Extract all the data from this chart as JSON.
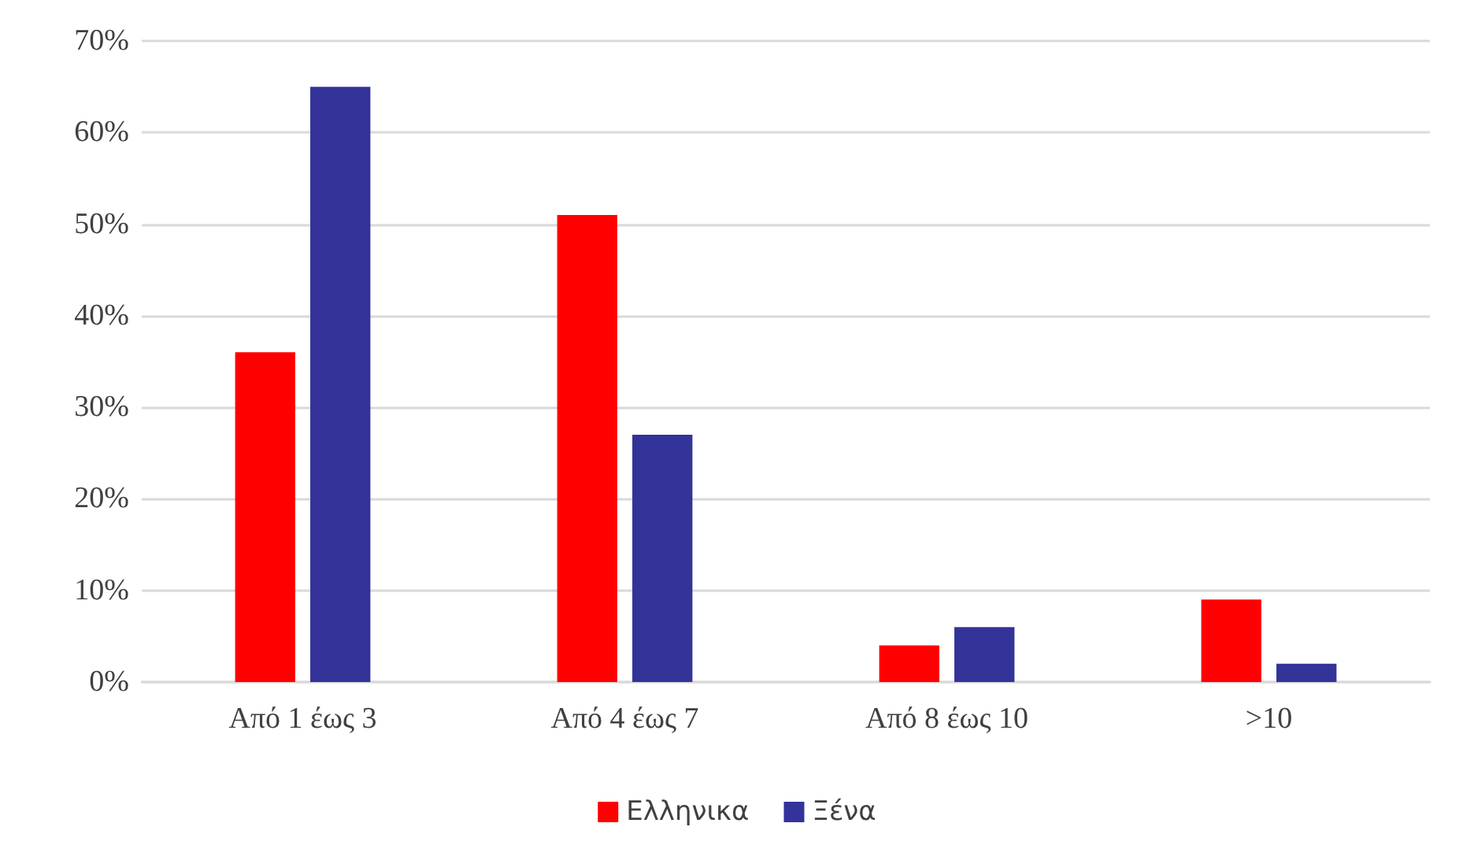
{
  "chart_data": {
    "type": "bar",
    "categories": [
      "Από 1 έως 3",
      "Από 4 έως 7",
      "Από 8 έως 10",
      ">10"
    ],
    "series": [
      {
        "name": "Ελληνικα",
        "color": "#ff0000",
        "values": [
          36,
          51,
          4,
          9
        ]
      },
      {
        "name": "Ξένα",
        "color": "#333399",
        "values": [
          65,
          27,
          6,
          2
        ]
      }
    ],
    "ylim": [
      0,
      70
    ],
    "yticks": [
      {
        "value": 0,
        "label": "0%"
      },
      {
        "value": 10,
        "label": "10%"
      },
      {
        "value": 20,
        "label": "20%"
      },
      {
        "value": 30,
        "label": "30%"
      },
      {
        "value": 40,
        "label": "40%"
      },
      {
        "value": 50,
        "label": "50%"
      },
      {
        "value": 60,
        "label": "60%"
      },
      {
        "value": 70,
        "label": "70%"
      }
    ],
    "grid": "y",
    "legend": "bottom"
  }
}
